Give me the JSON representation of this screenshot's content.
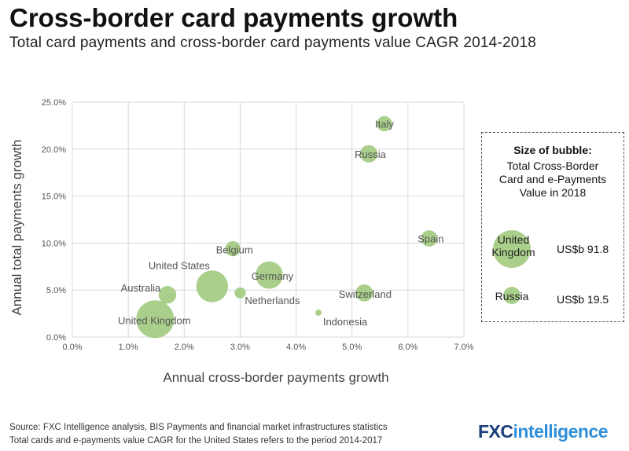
{
  "header": {
    "title": "Cross-border card payments growth",
    "subtitle": "Total card payments and cross-border card payments value CAGR 2014-2018"
  },
  "chart_data": {
    "type": "scatter",
    "xlabel": "Annual cross-border payments growth",
    "ylabel": "Annual total payments growth",
    "xlim": [
      0,
      7
    ],
    "ylim": [
      0,
      25
    ],
    "x_ticks": [
      "0.0%",
      "1.0%",
      "2.0%",
      "3.0%",
      "4.0%",
      "5.0%",
      "6.0%",
      "7.0%"
    ],
    "y_ticks": [
      "0.0%",
      "5.0%",
      "10.0%",
      "15.0%",
      "20.0%",
      "25.0%"
    ],
    "grid": true,
    "bubble_color": "#a9cf8b",
    "points": [
      {
        "label": "Italy",
        "x": 5.58,
        "y": 22.7,
        "size": 15
      },
      {
        "label": "Russia",
        "x": 5.3,
        "y": 19.5,
        "size": 19.5
      },
      {
        "label": "Spain",
        "x": 6.38,
        "y": 10.5,
        "size": 17
      },
      {
        "label": "Belgium",
        "x": 2.87,
        "y": 9.4,
        "size": 15
      },
      {
        "label": "Germany",
        "x": 3.52,
        "y": 6.6,
        "size": 48
      },
      {
        "label": "United States",
        "x": 2.5,
        "y": 5.4,
        "size": 65
      },
      {
        "label": "Australia",
        "x": 1.7,
        "y": 4.5,
        "size": 20
      },
      {
        "label": "Netherlands",
        "x": 3.0,
        "y": 4.7,
        "size": 8
      },
      {
        "label": "Switzerland",
        "x": 5.22,
        "y": 4.7,
        "size": 19
      },
      {
        "label": "Indonesia",
        "x": 4.4,
        "y": 2.6,
        "size": 2
      },
      {
        "label": "United Kingdom",
        "x": 1.48,
        "y": 1.9,
        "size": 91.8
      }
    ]
  },
  "legend": {
    "title": "Size of bubble:",
    "description": "Total Cross-Border Card and e-Payments Value in 2018",
    "items": [
      {
        "name": "United Kingdom",
        "value": "US$b 91.8"
      },
      {
        "name": "Russia",
        "value": "US$b 19.5"
      }
    ]
  },
  "footer": {
    "source": "Source: FXC Intelligence analysis, BIS Payments and financial market infrastructures statistics",
    "note": "Total cards and e-payments value CAGR for the United States refers to the period 2014-2017"
  },
  "logo": {
    "part1": "FXC",
    "part2": "intelligence"
  }
}
